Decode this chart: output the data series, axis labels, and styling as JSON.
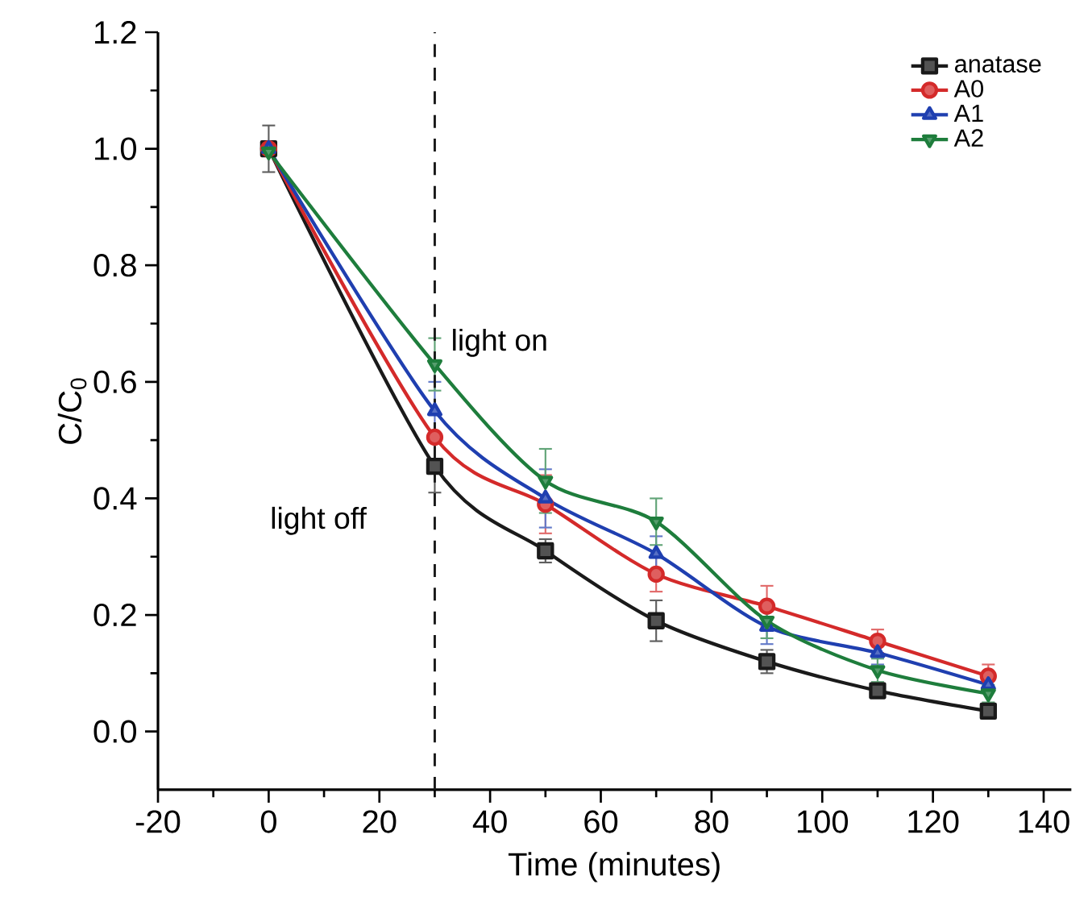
{
  "chart_data": {
    "type": "line",
    "xlabel": "Time (minutes)",
    "ylabel": "C/C$_{0}$",
    "x": [
      0,
      30,
      50,
      70,
      90,
      110,
      130
    ],
    "xlim": [
      -20,
      145
    ],
    "ylim": [
      -0.1,
      1.2
    ],
    "xticks": [
      -20,
      0,
      20,
      40,
      60,
      80,
      100,
      120,
      140
    ],
    "yticks": [
      {
        "value": 0,
        "label": "0.0"
      },
      {
        "value": 0.2,
        "label": "0.2"
      },
      {
        "value": 0.4,
        "label": "0.4"
      },
      {
        "value": 0.6,
        "label": "0.6"
      },
      {
        "value": 0.8,
        "label": "0.8"
      },
      {
        "value": 1.0,
        "label": "1.0"
      },
      {
        "value": 1.2,
        "label": "1.2"
      }
    ],
    "legend": "top right",
    "series": [
      {
        "name": "anatase",
        "color": "#1a1a1a",
        "marker": "square",
        "values": [
          1.0,
          0.455,
          0.31,
          0.19,
          0.12,
          0.07,
          0.035
        ],
        "errors": [
          0.04,
          0.045,
          0.02,
          0.035,
          0.02,
          0.01,
          0.01
        ]
      },
      {
        "name": "A0",
        "color": "#d42a2a",
        "marker": "circle",
        "values": [
          1.0,
          0.505,
          0.39,
          0.27,
          0.215,
          0.155,
          0.095
        ],
        "errors": [
          null,
          null,
          0.05,
          0.03,
          0.035,
          0.02,
          0.02
        ]
      },
      {
        "name": "A1",
        "color": "#1f3fb0",
        "marker": "triangle",
        "values": [
          1.0,
          0.55,
          0.4,
          0.305,
          0.18,
          0.135,
          0.08
        ],
        "errors": [
          null,
          0.05,
          0.05,
          0.03,
          0.03,
          0.02,
          null
        ]
      },
      {
        "name": "A2",
        "color": "#1e7d3c",
        "marker": "triangle_down",
        "values": [
          0.995,
          0.63,
          0.43,
          0.36,
          0.19,
          0.105,
          0.065
        ],
        "errors": [
          null,
          0.045,
          0.055,
          0.04,
          0.03,
          0.02,
          0.015
        ]
      }
    ],
    "ref_lines": [
      {
        "axis": "x",
        "value": 30,
        "line_style": "dashed",
        "color": "#1a1a1a"
      }
    ],
    "annotations": [
      "light on",
      "light off"
    ]
  }
}
